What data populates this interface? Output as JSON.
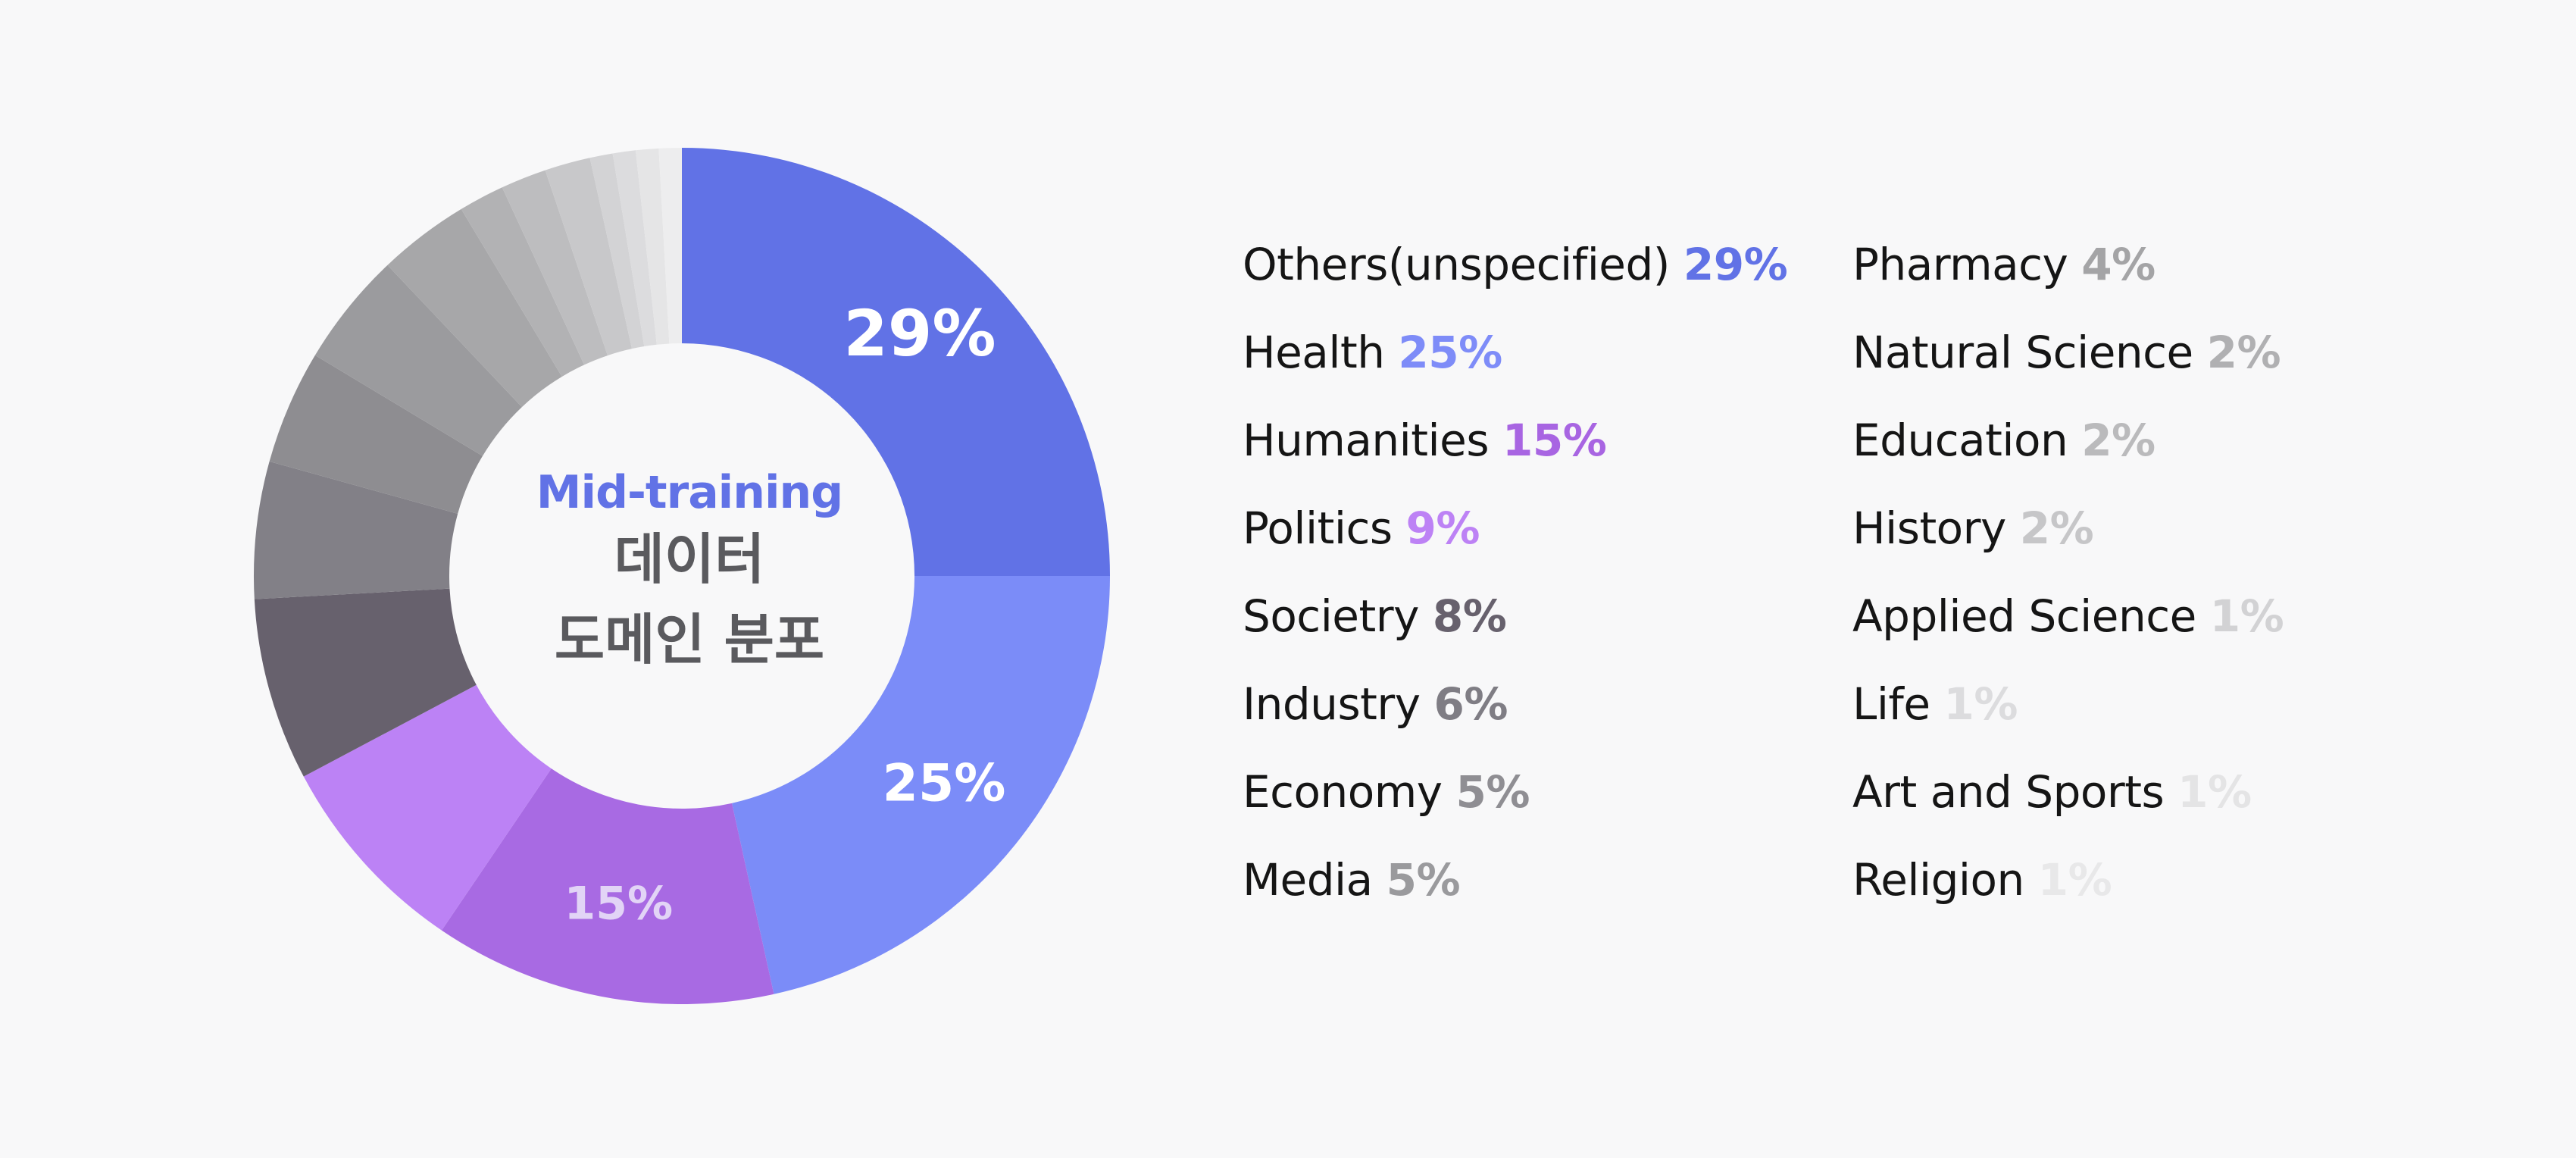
{
  "center": {
    "title": "Mid-training",
    "subtitle_line1": "데이터",
    "subtitle_line2": "도메인 분포"
  },
  "chart_data": {
    "type": "pie",
    "donut": true,
    "unit": "%",
    "slices": [
      {
        "label": "Others(unspecified)",
        "value": 29,
        "value_text": "29%",
        "color": "#6172e6",
        "text_color": "#6172e6",
        "show_on_chart": true,
        "chart_label_color": "#ffffff",
        "chart_label_size": 84
      },
      {
        "label": "Health",
        "value": 25,
        "value_text": "25%",
        "color": "#7b8cf8",
        "text_color": "#7e8cf8",
        "show_on_chart": true,
        "chart_label_color": "#ffffff",
        "chart_label_size": 68
      },
      {
        "label": "Humanities",
        "value": 15,
        "value_text": "15%",
        "color": "#a86ae3",
        "text_color": "#a865e2",
        "show_on_chart": true,
        "chart_label_color": "#e2d4f6",
        "chart_label_size": 60
      },
      {
        "label": "Politics",
        "value": 9,
        "value_text": "9%",
        "color": "#bc82f5",
        "text_color": "#bd82f5",
        "show_on_chart": false
      },
      {
        "label": "Societry",
        "value": 8,
        "value_text": "8%",
        "color": "#67616d",
        "text_color": "#67616d",
        "show_on_chart": false
      },
      {
        "label": "Industry",
        "value": 6,
        "value_text": "6%",
        "color": "#828087",
        "text_color": "#7f7d84",
        "show_on_chart": false
      },
      {
        "label": "Economy",
        "value": 5,
        "value_text": "5%",
        "color": "#8e8d91",
        "text_color": "#8f8e93",
        "show_on_chart": false
      },
      {
        "label": "Media",
        "value": 5,
        "value_text": "5%",
        "color": "#9b9b9e",
        "text_color": "#9a9a9d",
        "show_on_chart": false
      },
      {
        "label": "Pharmacy",
        "value": 4,
        "value_text": "4%",
        "color": "#a7a7a9",
        "text_color": "#a4a4a6",
        "show_on_chart": false
      },
      {
        "label": "Natural Science",
        "value": 2,
        "value_text": "2%",
        "color": "#b2b2b4",
        "text_color": "#b0b0b2",
        "show_on_chart": false
      },
      {
        "label": "Education",
        "value": 2,
        "value_text": "2%",
        "color": "#bdbdbf",
        "text_color": "#bababc",
        "show_on_chart": false
      },
      {
        "label": "History",
        "value": 2,
        "value_text": "2%",
        "color": "#c8c8ca",
        "text_color": "#c6c6c8",
        "show_on_chart": false
      },
      {
        "label": "Applied Science",
        "value": 1,
        "value_text": "1%",
        "color": "#d3d3d5",
        "text_color": "#d2d2d4",
        "show_on_chart": false
      },
      {
        "label": "Life",
        "value": 1,
        "value_text": "1%",
        "color": "#dcdcde",
        "text_color": "#dcdcde",
        "show_on_chart": false
      },
      {
        "label": "Art and Sports",
        "value": 1,
        "value_text": "1%",
        "color": "#e5e5e6",
        "text_color": "#e4e4e5",
        "show_on_chart": false
      },
      {
        "label": "Religion",
        "value": 1,
        "value_text": "1%",
        "color": "#ededee",
        "text_color": "#e8e8e9",
        "show_on_chart": false
      }
    ]
  }
}
